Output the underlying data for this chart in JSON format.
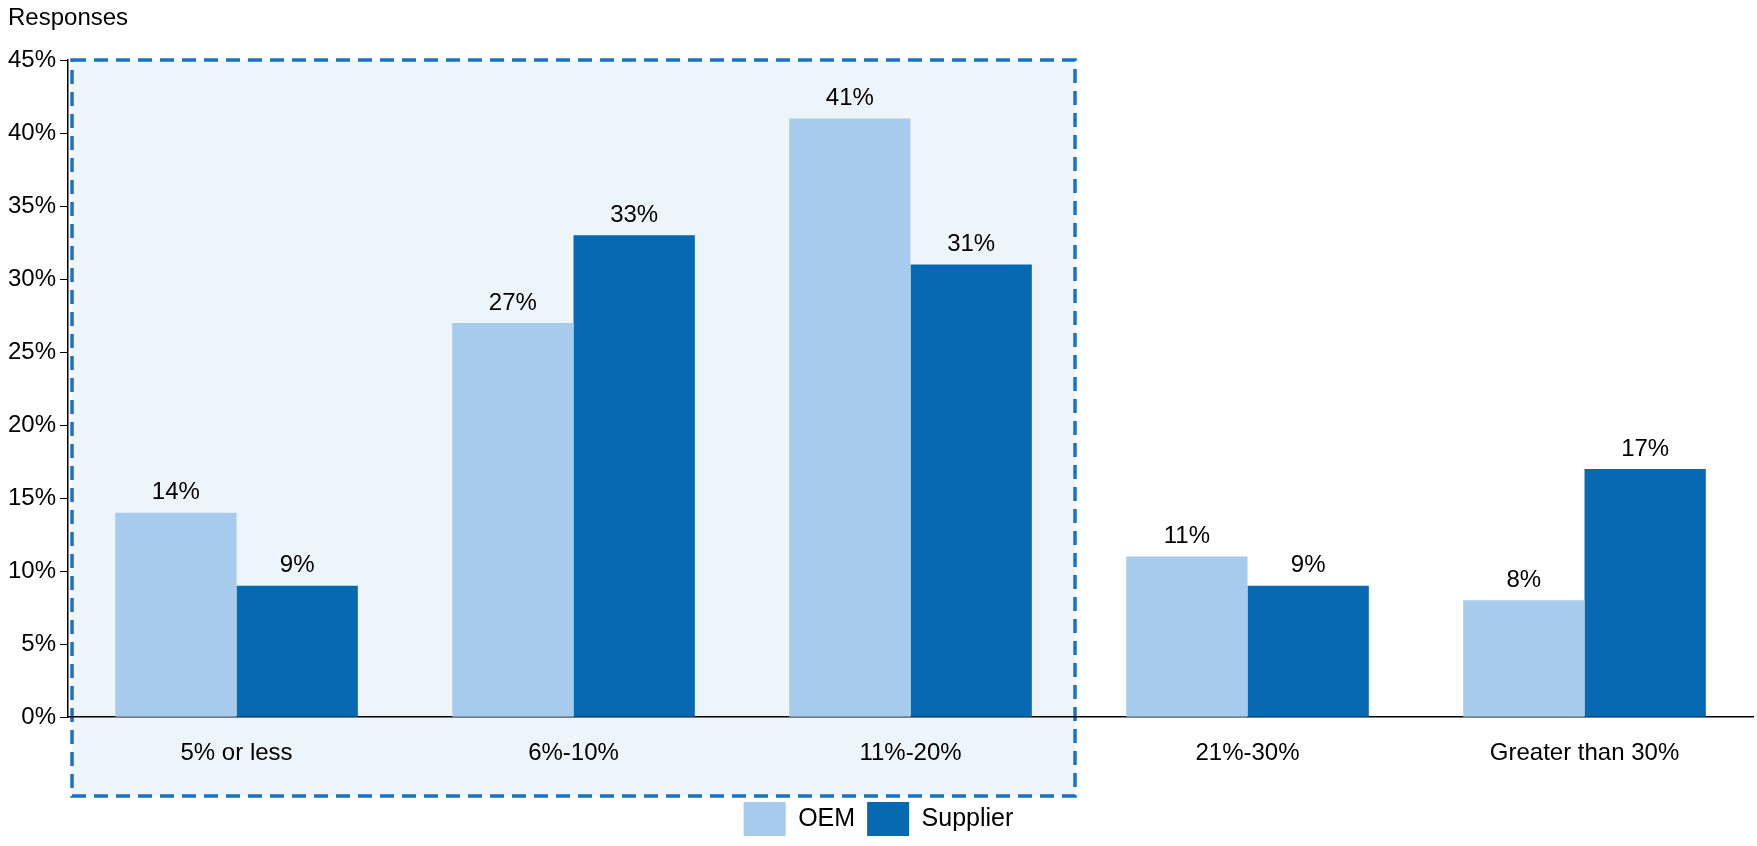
{
  "chart_data": {
    "type": "bar",
    "ylabel": "Responses",
    "categories": [
      "5% or less",
      "6%-10%",
      "11%-20%",
      "21%-30%",
      "Greater than 30%"
    ],
    "series": [
      {
        "name": "OEM",
        "color": "#a7cbec",
        "values": [
          14,
          27,
          41,
          11,
          8
        ],
        "value_labels": [
          "14%",
          "27%",
          "41%",
          "11%",
          "8%"
        ]
      },
      {
        "name": "Supplier",
        "color": "#0769b1",
        "values": [
          9,
          33,
          31,
          9,
          17
        ],
        "value_labels": [
          "9%",
          "33%",
          "31%",
          "9%",
          "17%"
        ]
      }
    ],
    "ylim": [
      0,
      45
    ],
    "yticks": [
      {
        "value": 0,
        "label": "0%"
      },
      {
        "value": 5,
        "label": "5%"
      },
      {
        "value": 10,
        "label": "10%"
      },
      {
        "value": 15,
        "label": "15%"
      },
      {
        "value": 20,
        "label": "20%"
      },
      {
        "value": 25,
        "label": "25%"
      },
      {
        "value": 30,
        "label": "30%"
      },
      {
        "value": 35,
        "label": "35%"
      },
      {
        "value": 40,
        "label": "40%"
      },
      {
        "value": 45,
        "label": "45%"
      }
    ],
    "bands": [
      {
        "axis": "x",
        "from": "5% or less",
        "to": "11%-20%",
        "color": "#1a73c0"
      }
    ],
    "grid": false,
    "legend": "bottom"
  }
}
